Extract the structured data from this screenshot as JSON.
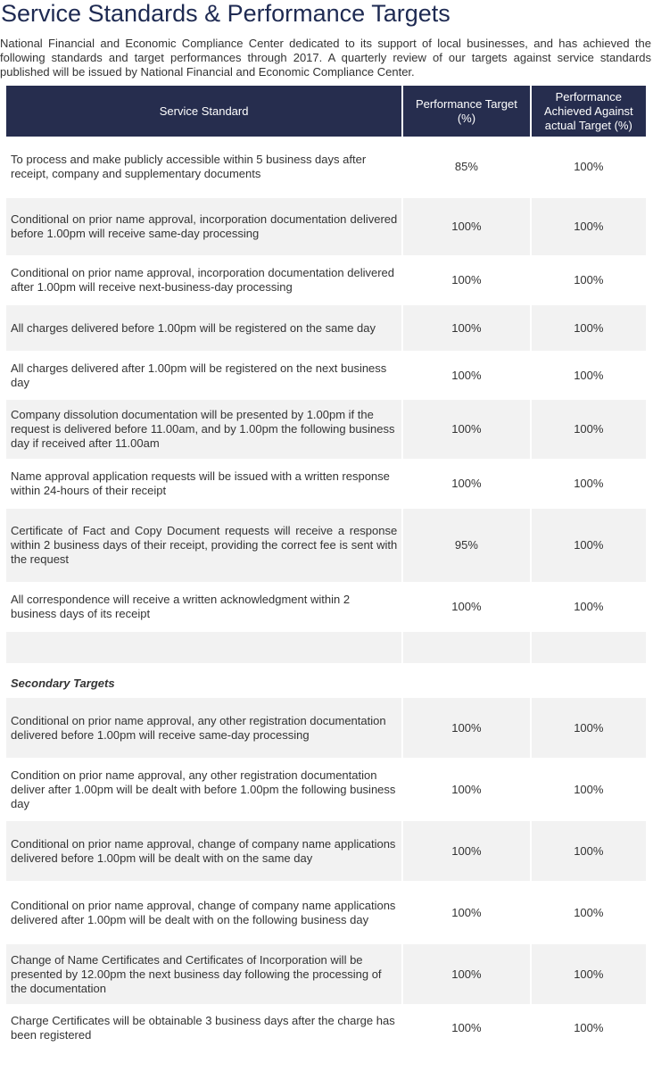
{
  "page": {
    "title": "Service Standards & Performance Targets",
    "intro": "National Financial and Economic Compliance Center dedicated to its support of local businesses, and has achieved the following standards and target performances through 2017. A quarterly review of our targets against service standards published will be issued by National Financial and Economic Compliance Center."
  },
  "table": {
    "headers": {
      "standard": "Service Standard",
      "target": "Performance Target (%)",
      "achieved": "Performance Achieved Against actual Target (%)"
    },
    "primary_rows": [
      {
        "standard": "To process and make publicly accessible within 5 business days after receipt, company and supplementary documents",
        "target": "85%",
        "achieved": "100%"
      },
      {
        "standard": "Conditional on prior name approval, incorporation documentation delivered before 1.00pm will receive same-day processing",
        "target": "100%",
        "achieved": "100%"
      },
      {
        "standard": "Conditional on prior name approval, incorporation documentation delivered after 1.00pm will receive next-business-day processing",
        "target": "100%",
        "achieved": "100%"
      },
      {
        "standard": "All charges delivered before 1.00pm will be registered on the same day",
        "target": "100%",
        "achieved": "100%"
      },
      {
        "standard": "All charges delivered after 1.00pm will be registered on the next business day",
        "target": "100%",
        "achieved": "100%"
      },
      {
        "standard": "Company dissolution documentation will be presented by 1.00pm if the request is delivered before 11.00am, and by 1.00pm the following business day if received after 11.00am",
        "target": "100%",
        "achieved": "100%"
      },
      {
        "standard": "Name approval application requests will be issued with a written response within 24-hours of their receipt",
        "target": "100%",
        "achieved": "100%"
      },
      {
        "standard": "Certificate of Fact and Copy Document requests will receive a response within 2 business days of their receipt, providing the correct fee is sent with the request",
        "target": "95%",
        "achieved": "100%"
      },
      {
        "standard": "All correspondence will receive a written acknowledgment within 2 business days of its receipt",
        "target": "100%",
        "achieved": "100%"
      }
    ],
    "secondary_heading": "Secondary Targets",
    "secondary_rows": [
      {
        "standard": "Conditional on prior name approval, any other registration documentation delivered before 1.00pm will receive same-day processing",
        "target": "100%",
        "achieved": "100%"
      },
      {
        "standard": "Condition on prior name approval, any other registration documentation deliver after 1.00pm will be dealt with before 1.00pm the following business day",
        "target": "100%",
        "achieved": "100%"
      },
      {
        "standard": "Conditional on prior name approval, change of company name applications delivered before 1.00pm will be dealt with on the same day",
        "target": "100%",
        "achieved": "100%"
      },
      {
        "standard": "Conditional on prior name approval, change of company name applications delivered after 1.00pm will be dealt with on the following business day",
        "target": "100%",
        "achieved": "100%"
      },
      {
        "standard": "Change of Name Certificates and Certificates of Incorporation will be presented by 12.00pm the next business day following the processing of the documentation",
        "target": "100%",
        "achieved": "100%"
      },
      {
        "standard": "Charge Certificates will be obtainable 3 business days after the charge has been registered",
        "target": "100%",
        "achieved": "100%"
      }
    ]
  }
}
